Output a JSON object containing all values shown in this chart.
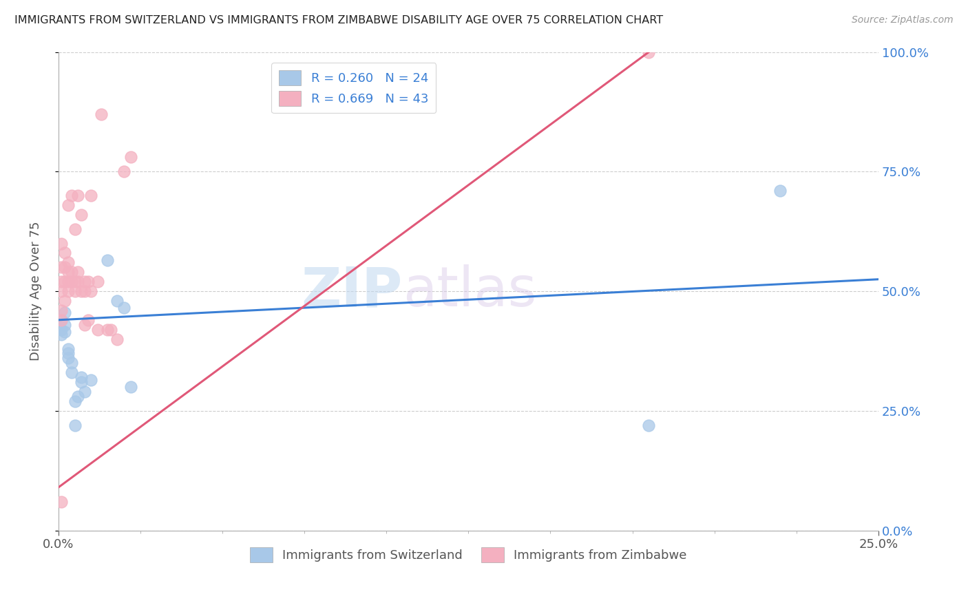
{
  "title": "IMMIGRANTS FROM SWITZERLAND VS IMMIGRANTS FROM ZIMBABWE DISABILITY AGE OVER 75 CORRELATION CHART",
  "source": "Source: ZipAtlas.com",
  "ylabel": "Disability Age Over 75",
  "xmin": 0.0,
  "xmax": 0.25,
  "ymin": 0.0,
  "ymax": 1.0,
  "switzerland_color": "#a8c8e8",
  "zimbabwe_color": "#f4b0c0",
  "line_switzerland_color": "#3a7fd5",
  "line_zimbabwe_color": "#e05878",
  "switzerland_R": 0.26,
  "switzerland_N": 24,
  "zimbabwe_R": 0.669,
  "zimbabwe_N": 43,
  "watermark_zip": "ZIP",
  "watermark_atlas": "atlas",
  "sw_line_x0": 0.0,
  "sw_line_y0": 0.44,
  "sw_line_x1": 0.25,
  "sw_line_y1": 0.525,
  "zw_line_x0": 0.0,
  "zw_line_y0": 0.09,
  "zw_line_x1": 0.18,
  "zw_line_y1": 1.0,
  "switzerland_x": [
    0.001,
    0.001,
    0.001,
    0.002,
    0.002,
    0.002,
    0.003,
    0.003,
    0.003,
    0.004,
    0.004,
    0.005,
    0.005,
    0.006,
    0.007,
    0.007,
    0.008,
    0.01,
    0.015,
    0.018,
    0.02,
    0.022,
    0.18,
    0.22
  ],
  "switzerland_y": [
    0.44,
    0.42,
    0.41,
    0.455,
    0.43,
    0.415,
    0.38,
    0.37,
    0.36,
    0.35,
    0.33,
    0.27,
    0.22,
    0.28,
    0.31,
    0.32,
    0.29,
    0.315,
    0.565,
    0.48,
    0.465,
    0.3,
    0.22,
    0.71
  ],
  "zimbabwe_x": [
    0.001,
    0.001,
    0.001,
    0.001,
    0.001,
    0.001,
    0.001,
    0.002,
    0.002,
    0.002,
    0.002,
    0.003,
    0.003,
    0.003,
    0.003,
    0.003,
    0.004,
    0.004,
    0.004,
    0.005,
    0.005,
    0.005,
    0.006,
    0.006,
    0.006,
    0.007,
    0.007,
    0.008,
    0.008,
    0.008,
    0.009,
    0.009,
    0.01,
    0.01,
    0.012,
    0.012,
    0.013,
    0.015,
    0.016,
    0.018,
    0.02,
    0.022,
    0.18
  ],
  "zimbabwe_y": [
    0.06,
    0.44,
    0.46,
    0.5,
    0.52,
    0.55,
    0.6,
    0.48,
    0.52,
    0.55,
    0.58,
    0.5,
    0.52,
    0.54,
    0.56,
    0.68,
    0.52,
    0.54,
    0.7,
    0.5,
    0.52,
    0.63,
    0.52,
    0.54,
    0.7,
    0.5,
    0.66,
    0.43,
    0.5,
    0.52,
    0.44,
    0.52,
    0.5,
    0.7,
    0.42,
    0.52,
    0.87,
    0.42,
    0.42,
    0.4,
    0.75,
    0.78,
    1.0
  ]
}
